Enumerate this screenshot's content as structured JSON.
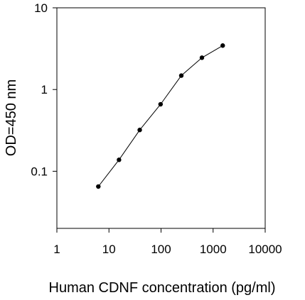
{
  "chart_data": {
    "type": "line",
    "title": "",
    "xlabel": "Human CDNF concentration (pg/ml)",
    "ylabel": "OD=450 nm",
    "x_scale": "log",
    "y_scale": "log",
    "xlim": [
      1,
      10000
    ],
    "ylim": [
      0.02,
      10
    ],
    "grid": false,
    "x_ticks": [
      {
        "value": 1,
        "label": "1"
      },
      {
        "value": 10,
        "label": "10"
      },
      {
        "value": 100,
        "label": "100"
      },
      {
        "value": 1000,
        "label": "1000"
      },
      {
        "value": 10000,
        "label": "10000"
      }
    ],
    "y_ticks": [
      {
        "value": 0.1,
        "label": "0.1"
      },
      {
        "value": 1,
        "label": "1"
      },
      {
        "value": 10,
        "label": "10"
      }
    ],
    "series": [
      {
        "x": [
          6.25,
          15.6,
          39,
          98,
          245,
          610,
          1530
        ],
        "y": [
          0.065,
          0.138,
          0.32,
          0.66,
          1.48,
          2.45,
          3.45
        ]
      }
    ],
    "colors": {
      "line": "#000000",
      "marker": "#000000"
    }
  }
}
